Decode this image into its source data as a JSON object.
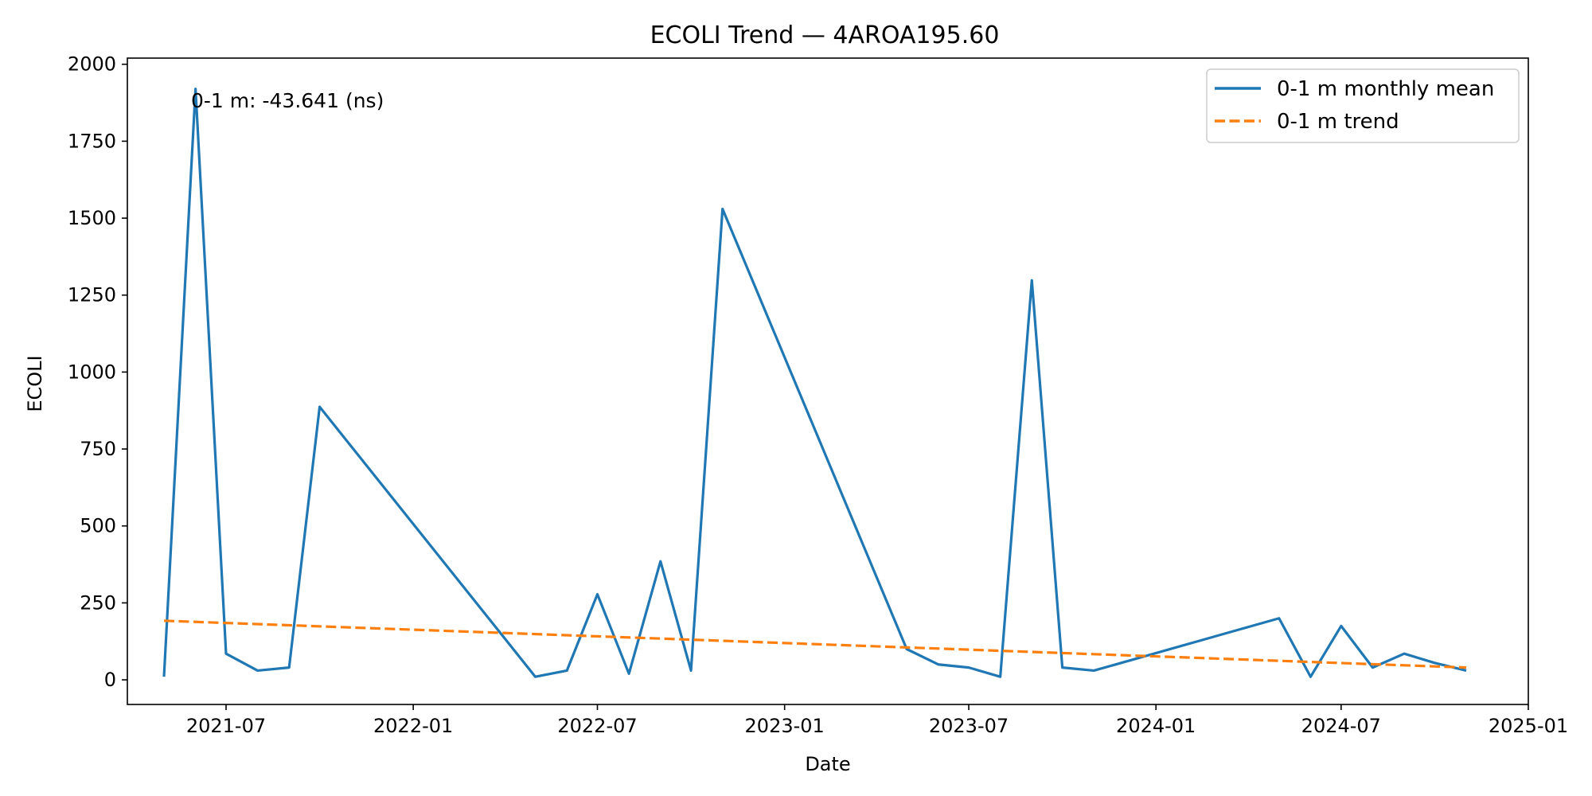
{
  "chart_data": {
    "type": "line",
    "title": "ECOLI Trend — 4AROA195.60",
    "xlabel": "Date",
    "ylabel": "ECOLI",
    "annotation": "0-1 m: -43.641 (ns)",
    "x_ticks": [
      "2021-07",
      "2022-01",
      "2022-07",
      "2023-01",
      "2023-07",
      "2024-01",
      "2024-07",
      "2025-01"
    ],
    "y_ticks": [
      0,
      250,
      500,
      750,
      1000,
      1250,
      1500,
      1750,
      2000
    ],
    "xlim": [
      "2021-03-26",
      "2025-01-01"
    ],
    "ylim": [
      -80,
      2020
    ],
    "grid": false,
    "legend_position": "top-right",
    "series": [
      {
        "name": "0-1 m monthly mean",
        "color": "#1f77b4",
        "style": "solid",
        "points": [
          [
            "2021-05-01",
            10
          ],
          [
            "2021-06-01",
            1920
          ],
          [
            "2021-07-01",
            85
          ],
          [
            "2021-08-01",
            30
          ],
          [
            "2021-09-01",
            40
          ],
          [
            "2021-10-01",
            887
          ],
          [
            "2022-05-01",
            10
          ],
          [
            "2022-06-01",
            30
          ],
          [
            "2022-07-01",
            278
          ],
          [
            "2022-08-01",
            20
          ],
          [
            "2022-09-01",
            385
          ],
          [
            "2022-10-01",
            30
          ],
          [
            "2022-11-01",
            1530
          ],
          [
            "2023-05-01",
            100
          ],
          [
            "2023-06-01",
            50
          ],
          [
            "2023-07-01",
            40
          ],
          [
            "2023-08-01",
            10
          ],
          [
            "2023-09-01",
            1298
          ],
          [
            "2023-10-01",
            40
          ],
          [
            "2023-11-01",
            30
          ],
          [
            "2024-05-01",
            200
          ],
          [
            "2024-06-01",
            10
          ],
          [
            "2024-07-01",
            175
          ],
          [
            "2024-08-01",
            40
          ],
          [
            "2024-09-01",
            85
          ],
          [
            "2024-10-01",
            55
          ],
          [
            "2024-11-01",
            30
          ]
        ]
      },
      {
        "name": "0-1 m trend",
        "color": "#ff7f0e",
        "style": "dashed",
        "points": [
          [
            "2021-05-01",
            192
          ],
          [
            "2024-11-01",
            40
          ]
        ]
      }
    ]
  }
}
